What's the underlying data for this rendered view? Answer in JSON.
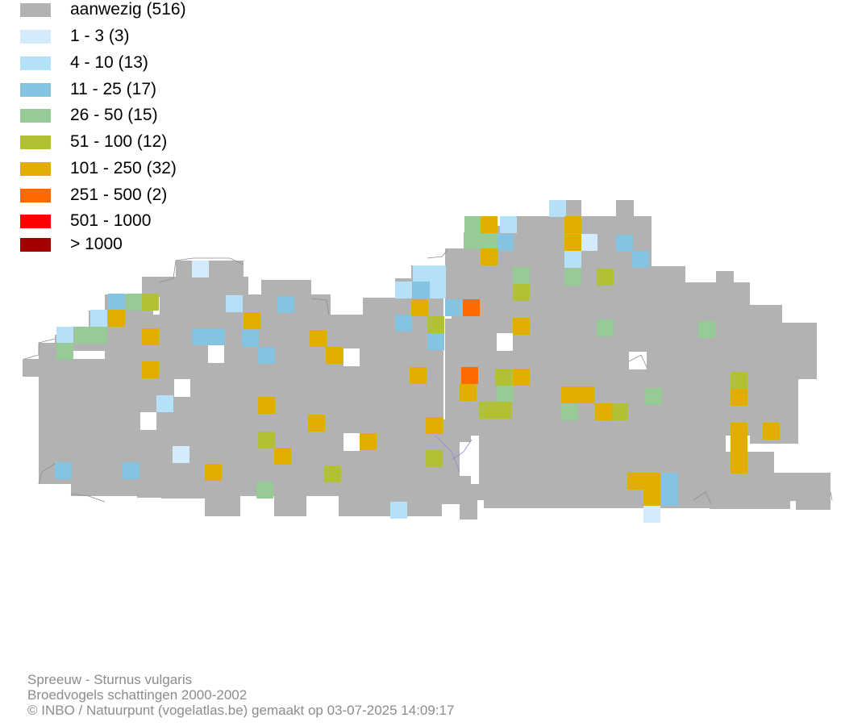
{
  "legend": [
    {
      "label": "aanwezig (516)",
      "color": "#b2b2b2"
    },
    {
      "label": "1 - 3 (3)",
      "color": "#d3ebfb"
    },
    {
      "label": "4 - 10 (13)",
      "color": "#b4e0f8"
    },
    {
      "label": "11 - 25 (17)",
      "color": "#86c3e1"
    },
    {
      "label": "26 - 50 (15)",
      "color": "#96cb96"
    },
    {
      "label": "51 - 100 (12)",
      "color": "#b2c035"
    },
    {
      "label": "101 - 250 (32)",
      "color": "#e2ad00"
    },
    {
      "label": "251 - 500 (2)",
      "color": "#ff6a00"
    },
    {
      "label": "501 - 1000",
      "color": "#ff0000"
    },
    {
      "label": "> 1000",
      "color": "#a30000"
    }
  ],
  "footer": {
    "species": "Spreeuw - Sturnus vulgaris",
    "dataset": "Broedvogels schattingen 2000-2002",
    "credit": "© INBO / Natuurpunt (vogelatlas.be) gemaakt op 03-07-2025 14:09:17"
  }
}
